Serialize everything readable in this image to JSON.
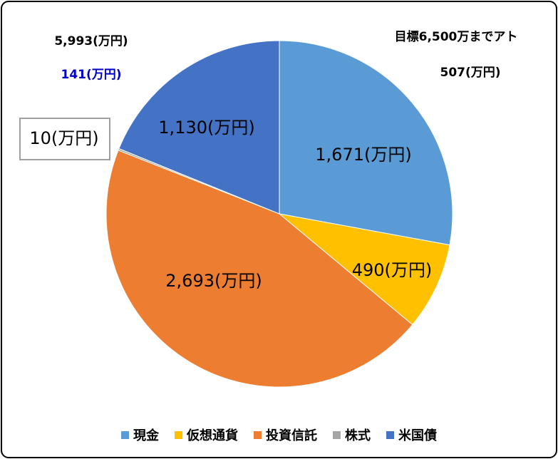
{
  "chart_data": {
    "type": "pie",
    "categories": [
      "現金",
      "仮想通貨",
      "投資信託",
      "株式",
      "米国債"
    ],
    "values": [
      1671,
      490,
      2693,
      10,
      1130
    ],
    "value_labels": [
      "1,671(万円)",
      "490(万円)",
      "2,693(万円)",
      "10(万円)",
      "1,130(万円)"
    ],
    "colors": [
      "#5b9bd5",
      "#ffc000",
      "#ed7d31",
      "#a5a5a5",
      "#4472c4"
    ],
    "annotations": [
      {
        "text": "5,993(万円)",
        "color": "#000000"
      },
      {
        "text": "141(万円)",
        "color": "#0000cc"
      },
      {
        "text": "目標6,500万までアト",
        "color": "#000000"
      },
      {
        "text": "507(万円)",
        "color": "#000000"
      }
    ],
    "legend": "bottom"
  }
}
